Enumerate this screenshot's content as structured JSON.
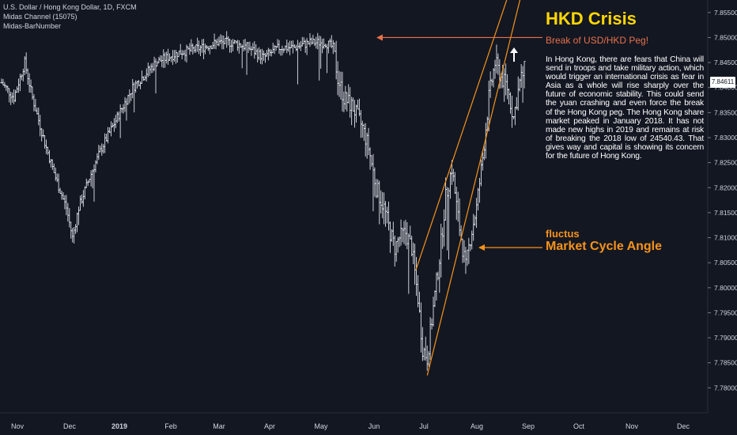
{
  "legend": {
    "symbol": "U.S. Dollar / Hong Kong Dollar, 1D, FXCM",
    "indicator1": "Midas Channel (15075)",
    "indicator2": "Midas-BarNumber"
  },
  "annotations": {
    "title": "HKD Crisis",
    "peg_label": "Break of USD/HKD Peg!",
    "description": "In Hong Kong, there are fears that China will send in troops and take military action, which would trigger an international crisis as fear in Asia as a whole will rise sharply over the future of economic stability. This could send the yuan crashing and even force the break of the Hong Kong peg. The Hong Kong share market peaked in January 2018. It has not made new highs in 2019 and remains at risk of breaking the 2018 low of 24540.43. That gives way and capital is showing its concern for the future of Hong Kong.",
    "brand": "fluctus",
    "angle_label": "Market Cycle Angle",
    "current_price": "7.84611"
  },
  "colors": {
    "background": "#131722",
    "bars": "#e0e3eb",
    "channel": "#f7931a",
    "peg_arrow": "#e8714a",
    "title": "#ffd700",
    "axis_text": "#d1d4dc"
  },
  "chart_data": {
    "type": "ohlc",
    "ylim": [
      7.775,
      7.8575
    ],
    "y_ticks": [
      7.78,
      7.785,
      7.79,
      7.795,
      7.8,
      7.805,
      7.81,
      7.815,
      7.82,
      7.825,
      7.83,
      7.835,
      7.84,
      7.845,
      7.85,
      7.855
    ],
    "x_labels": [
      "Nov",
      "Dec",
      "2019",
      "Feb",
      "Mar",
      "Apr",
      "May",
      "Jun",
      "Jul",
      "Aug",
      "Sep",
      "Oct",
      "Nov",
      "Dec"
    ],
    "keypoints_close": [
      [
        0,
        7.841
      ],
      [
        8,
        7.838
      ],
      [
        15,
        7.845
      ],
      [
        20,
        7.838
      ],
      [
        28,
        7.829
      ],
      [
        35,
        7.822
      ],
      [
        42,
        7.816
      ],
      [
        46,
        7.81
      ],
      [
        50,
        7.816
      ],
      [
        57,
        7.822
      ],
      [
        65,
        7.828
      ],
      [
        75,
        7.834
      ],
      [
        85,
        7.84
      ],
      [
        100,
        7.845
      ],
      [
        115,
        7.847
      ],
      [
        130,
        7.848
      ],
      [
        140,
        7.849
      ],
      [
        150,
        7.849
      ],
      [
        160,
        7.848
      ],
      [
        170,
        7.846
      ],
      [
        180,
        7.848
      ],
      [
        190,
        7.848
      ],
      [
        200,
        7.849
      ],
      [
        210,
        7.849
      ],
      [
        215,
        7.848
      ],
      [
        218,
        7.842
      ],
      [
        222,
        7.838
      ],
      [
        228,
        7.836
      ],
      [
        234,
        7.832
      ],
      [
        238,
        7.828
      ],
      [
        243,
        7.82
      ],
      [
        248,
        7.816
      ],
      [
        252,
        7.811
      ],
      [
        255,
        7.808
      ],
      [
        258,
        7.81
      ],
      [
        262,
        7.811
      ],
      [
        266,
        7.808
      ],
      [
        270,
        7.798
      ],
      [
        273,
        7.788
      ],
      [
        276,
        7.786
      ],
      [
        280,
        7.796
      ],
      [
        284,
        7.806
      ],
      [
        288,
        7.818
      ],
      [
        292,
        7.824
      ],
      [
        296,
        7.814
      ],
      [
        299,
        7.808
      ],
      [
        301,
        7.804
      ],
      [
        304,
        7.81
      ],
      [
        308,
        7.816
      ],
      [
        312,
        7.826
      ],
      [
        316,
        7.838
      ],
      [
        320,
        7.845
      ],
      [
        324,
        7.842
      ],
      [
        328,
        7.84
      ],
      [
        332,
        7.834
      ],
      [
        336,
        7.841
      ],
      [
        339,
        7.8435
      ]
    ],
    "midas_channel": [
      {
        "name": "upper",
        "from": [
          "2019-06-27",
          7.8035
        ],
        "to": [
          "2019-08-19",
          7.8575
        ]
      },
      {
        "name": "lower",
        "from": [
          "2019-07-03",
          7.7825
        ],
        "to": [
          "2019-08-27",
          7.8575
        ]
      }
    ],
    "peg_break_level": 7.85
  }
}
